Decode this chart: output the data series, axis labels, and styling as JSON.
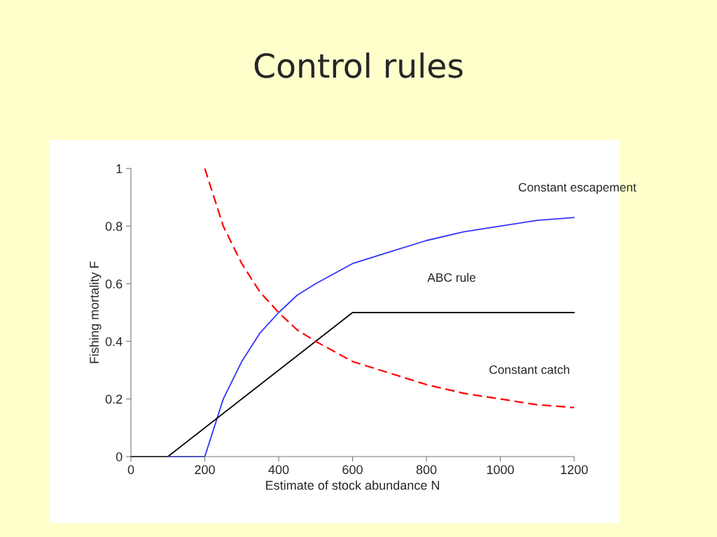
{
  "chart_data": {
    "type": "line",
    "title": "Control rules",
    "xlabel": "Estimate of stock abundance N",
    "ylabel": "Fishing mortality F",
    "xlim": [
      0,
      1200
    ],
    "xticks": [
      0,
      200,
      400,
      600,
      800,
      1000,
      1200
    ],
    "ylim": [
      0,
      1
    ],
    "yticks": [
      0,
      0.2,
      0.4,
      0.6,
      0.8,
      1
    ],
    "grid": false,
    "legend": false,
    "series": [
      {
        "name": "Constant escapement",
        "color": "#3333ff",
        "line_style": "solid",
        "x": [
          0,
          200,
          250,
          300,
          350,
          400,
          450,
          500,
          600,
          700,
          800,
          900,
          1000,
          1100,
          1200
        ],
        "values": [
          0,
          0,
          0.2,
          0.33,
          0.43,
          0.5,
          0.56,
          0.6,
          0.67,
          0.71,
          0.75,
          0.78,
          0.8,
          0.82,
          0.83
        ]
      },
      {
        "name": "ABC rule",
        "color": "#000000",
        "line_style": "solid",
        "x": [
          0,
          100,
          600,
          1200
        ],
        "values": [
          0,
          0,
          0.5,
          0.5
        ]
      },
      {
        "name": "Constant catch",
        "color": "#ff0000",
        "line_style": "dashed",
        "x": [
          200,
          250,
          300,
          350,
          400,
          450,
          500,
          600,
          700,
          800,
          900,
          1000,
          1100,
          1200
        ],
        "values": [
          1,
          0.8,
          0.67,
          0.57,
          0.5,
          0.44,
          0.4,
          0.33,
          0.29,
          0.25,
          0.22,
          0.2,
          0.18,
          0.17
        ]
      }
    ]
  }
}
